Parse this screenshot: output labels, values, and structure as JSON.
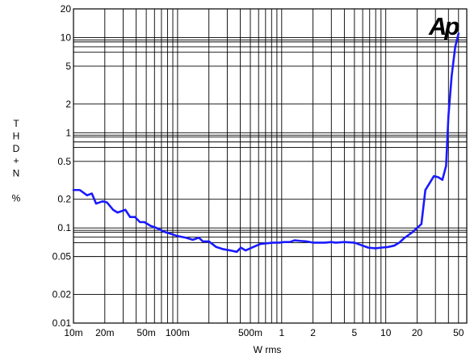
{
  "chart_data": {
    "type": "line",
    "xlabel": "W rms",
    "ylabel": [
      "T",
      "H",
      "D",
      "+",
      "N",
      "",
      "%"
    ],
    "x_scale": "log",
    "y_scale": "log",
    "xlim": [
      0.01,
      60
    ],
    "ylim": [
      0.01,
      20
    ],
    "grid": true,
    "logo_text": "Ap",
    "colors": {
      "series": "#1a1aff",
      "grid": "#000000",
      "logo": "#1a1aff"
    },
    "x_ticks": [
      {
        "value": 0.01,
        "label": "10m"
      },
      {
        "value": 0.02,
        "label": "20m"
      },
      {
        "value": 0.05,
        "label": "50m"
      },
      {
        "value": 0.1,
        "label": "100m"
      },
      {
        "value": 0.5,
        "label": "500m"
      },
      {
        "value": 1,
        "label": "1"
      },
      {
        "value": 2,
        "label": "2"
      },
      {
        "value": 5,
        "label": "5"
      },
      {
        "value": 10,
        "label": "10"
      },
      {
        "value": 20,
        "label": "20"
      },
      {
        "value": 50,
        "label": "50"
      }
    ],
    "y_ticks": [
      {
        "value": 0.01,
        "label": "0.01"
      },
      {
        "value": 0.02,
        "label": "0.02"
      },
      {
        "value": 0.05,
        "label": "0.05"
      },
      {
        "value": 0.1,
        "label": "0.1"
      },
      {
        "value": 0.2,
        "label": "0.2"
      },
      {
        "value": 0.5,
        "label": "0.5"
      },
      {
        "value": 1,
        "label": "1"
      },
      {
        "value": 2,
        "label": "2"
      },
      {
        "value": 5,
        "label": "5"
      },
      {
        "value": 10,
        "label": "10"
      },
      {
        "value": 20,
        "label": "20"
      }
    ],
    "series": [
      {
        "x": [
          0.01,
          0.0115,
          0.0135,
          0.015,
          0.0165,
          0.019,
          0.021,
          0.024,
          0.0265,
          0.0315,
          0.035,
          0.039,
          0.0435,
          0.048,
          0.055,
          0.0625,
          0.069,
          0.0765,
          0.085,
          0.1,
          0.12,
          0.14,
          0.16,
          0.175,
          0.2,
          0.235,
          0.27,
          0.32,
          0.37,
          0.405,
          0.45,
          0.5,
          0.57,
          0.63,
          0.72,
          0.83,
          0.95,
          1.05,
          1.2,
          1.33,
          1.5,
          1.75,
          2.0,
          2.3,
          2.6,
          3.0,
          3.3,
          4.0,
          5.0,
          5.8,
          6.8,
          8.0,
          9.0,
          10.5,
          12.0,
          13.5,
          15.0,
          18.0,
          20.0,
          22.0,
          24.0,
          29.0,
          32.0,
          35.0,
          38.0,
          40.0,
          43.0,
          46.5,
          50.0
        ],
        "y": [
          0.25,
          0.25,
          0.22,
          0.23,
          0.18,
          0.19,
          0.185,
          0.155,
          0.145,
          0.155,
          0.13,
          0.13,
          0.115,
          0.115,
          0.105,
          0.1,
          0.095,
          0.09,
          0.087,
          0.082,
          0.079,
          0.075,
          0.079,
          0.072,
          0.072,
          0.063,
          0.06,
          0.058,
          0.056,
          0.062,
          0.058,
          0.061,
          0.065,
          0.068,
          0.069,
          0.07,
          0.07,
          0.071,
          0.071,
          0.074,
          0.073,
          0.072,
          0.07,
          0.07,
          0.07,
          0.071,
          0.07,
          0.071,
          0.07,
          0.066,
          0.062,
          0.061,
          0.062,
          0.063,
          0.065,
          0.07,
          0.078,
          0.09,
          0.1,
          0.11,
          0.25,
          0.35,
          0.34,
          0.32,
          0.45,
          1.5,
          4.0,
          8.0,
          11.0
        ]
      }
    ]
  }
}
